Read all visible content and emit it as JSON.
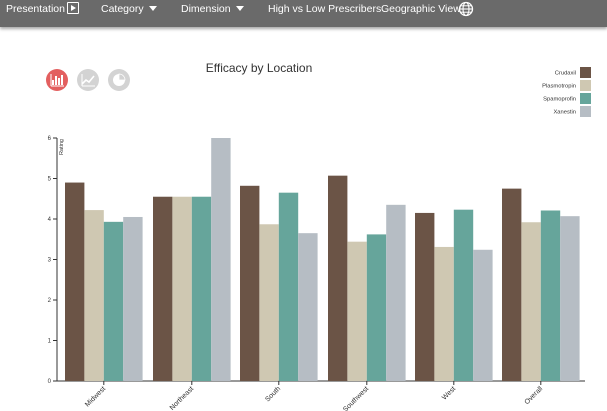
{
  "nav": {
    "presentation": "Presentation",
    "category": "Category",
    "dimension": "Dimension",
    "high_low": "High vs Low Prescribers",
    "geo_view": "Geographic View"
  },
  "icons": {
    "presentation": "play-icon",
    "category": "chevron-down-icon",
    "dimension": "chevron-down-icon",
    "geo_view": "globe-icon",
    "chart_buttons": [
      "bar-chart-icon",
      "line-chart-icon",
      "pie-chart-icon"
    ]
  },
  "colors": {
    "topbar": "#6a6a6a",
    "bar_button_active": "#e35f5f",
    "chart_button_inactive": "#d3d3d3"
  },
  "chart_data": {
    "type": "bar",
    "title": "Efficacy by Location",
    "ylabel": "Rating",
    "xlabel": "",
    "ylim": [
      0,
      6
    ],
    "yticks": [
      "0",
      "1",
      "2",
      "3",
      "4",
      "5",
      "6"
    ],
    "categories": [
      "Midwest",
      "Northeast",
      "South",
      "Southwest",
      "West",
      "Overall"
    ],
    "legend_position": "top-right",
    "grid": false,
    "series": [
      {
        "name": "Crudaxil",
        "color": "#6b5446",
        "values": [
          4.9,
          4.55,
          4.82,
          5.07,
          4.15,
          4.75
        ]
      },
      {
        "name": "Plasmotropin",
        "color": "#cfc8b2",
        "values": [
          4.22,
          4.55,
          3.87,
          3.44,
          3.31,
          3.92
        ]
      },
      {
        "name": "Spamoprofin",
        "color": "#66a59b",
        "values": [
          3.93,
          4.55,
          4.65,
          3.62,
          4.23,
          4.21
        ]
      },
      {
        "name": "Xanestin",
        "color": "#b6bdc4",
        "values": [
          4.05,
          6.0,
          3.65,
          4.35,
          3.24,
          4.07
        ]
      }
    ]
  }
}
